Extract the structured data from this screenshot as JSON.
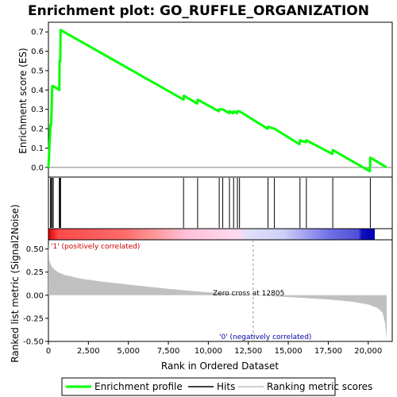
{
  "chart_data": {
    "type": "line",
    "title": "Enrichment plot: GO_RUFFLE_ORGANIZATION",
    "panels": {
      "enrichment": {
        "ylabel": "Enrichment score (ES)",
        "ylim": [
          -0.05,
          0.75
        ],
        "yticks": [
          "0.0",
          "0.1",
          "0.2",
          "0.3",
          "0.4",
          "0.5",
          "0.6",
          "0.7"
        ],
        "series": [
          {
            "name": "Enrichment profile",
            "color": "#00ff00",
            "x": [
              0,
              130,
              170,
              240,
              300,
              680,
              700,
              740,
              760,
              8450,
              8470,
              9300,
              9330,
              10650,
              10680,
              10900,
              11300,
              11320,
              11550,
              11580,
              11800,
              11820,
              11950,
              13700,
              13730,
              14100,
              14130,
              15700,
              15730,
              16100,
              16130,
              17750,
              17780,
              20100,
              20130,
              21150
            ],
            "y": [
              0.0,
              0.22,
              0.22,
              0.42,
              0.42,
              0.4,
              0.55,
              0.55,
              0.71,
              0.35,
              0.37,
              0.33,
              0.35,
              0.29,
              0.3,
              0.3,
              0.28,
              0.29,
              0.28,
              0.29,
              0.28,
              0.29,
              0.29,
              0.2,
              0.21,
              0.2,
              0.2,
              0.12,
              0.14,
              0.13,
              0.14,
              0.07,
              0.09,
              -0.02,
              0.05,
              0.0
            ]
          }
        ]
      },
      "hits": {
        "positions": [
          130,
          170,
          240,
          300,
          680,
          700,
          740,
          760,
          8450,
          9330,
          10680,
          10900,
          11320,
          11580,
          11820,
          11950,
          13730,
          14130,
          15730,
          16130,
          17780,
          20130
        ]
      },
      "ranked_metric": {
        "ylabel": "Ranked list metric (Signal2Noise)",
        "xlabel": "Rank in Ordered Dataset",
        "ylim": [
          -0.5,
          0.6
        ],
        "yticks": [
          "0.50",
          "0.25",
          "0.00",
          "-0.25",
          "-0.50"
        ],
        "xticks": [
          "0",
          "2,500",
          "5,000",
          "7,500",
          "10,000",
          "12,500",
          "15,000",
          "17,500",
          "20,000"
        ],
        "xlim": [
          0,
          21500
        ],
        "n": 21150,
        "zero_cross": 12805,
        "zero_cross_label": "Zero cross at 12805",
        "pos_label": "'1' (positively correlated)",
        "neg_label": "'0' (negatively correlated)",
        "pos_color": "#cc0000",
        "neg_color": "#0000aa",
        "fill_color": "#c0c0c0",
        "profile": {
          "x": [
            0,
            50,
            150,
            300,
            600,
            1000,
            2000,
            3000,
            5000,
            7500,
            10000,
            12805,
            15000,
            17500,
            19000,
            20000,
            20600,
            20900,
            21050,
            21150
          ],
          "y": [
            0.56,
            0.38,
            0.33,
            0.29,
            0.25,
            0.22,
            0.18,
            0.155,
            0.115,
            0.07,
            0.03,
            0.0,
            -0.02,
            -0.045,
            -0.07,
            -0.1,
            -0.14,
            -0.19,
            -0.3,
            -0.48
          ]
        }
      }
    },
    "legend": {
      "placement": "bottom",
      "entries": [
        {
          "label": "Enrichment profile",
          "color": "#00ff00"
        },
        {
          "label": "Hits",
          "color": "#000000"
        },
        {
          "label": "Ranking metric scores",
          "color": "#c0c0c0"
        }
      ]
    }
  }
}
